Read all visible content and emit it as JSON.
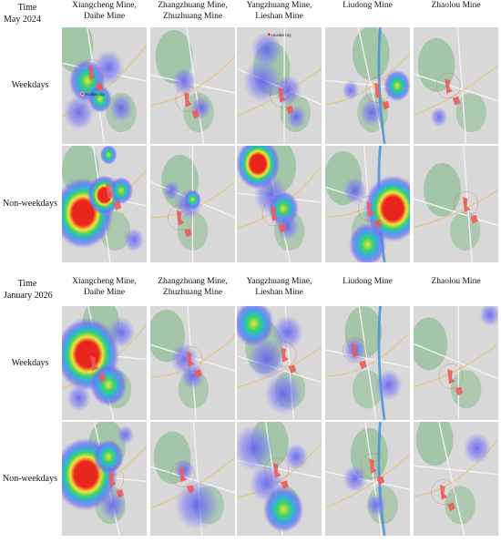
{
  "panels": [
    {
      "time_label": "Time",
      "period": "May 2024",
      "columns": [
        "Xiangcheng Mine, Daihe Mine",
        "Zhangzhuang Mine, Zhuzhuang Mine",
        "Yangzhuang Mine, Lieshan Mine",
        "Liudong Mine",
        "Zhaolou Mine"
      ],
      "rows": [
        "Weekdays",
        "Non-weekdays"
      ],
      "map_labels": [
        "Huaibei city",
        "Huaibei city"
      ]
    },
    {
      "time_label": "Time",
      "period": "January 2026",
      "columns": [
        "Xiangcheng Mine, Daihe Mine",
        "Zhangzhuang Mine, Zhuzhuang Mine",
        "Yangzhuang Mine, Lieshan Mine",
        "Liudong Mine",
        "Zhaolou Mine"
      ],
      "rows": [
        "Weekdays",
        "Non-weekdays"
      ]
    }
  ]
}
